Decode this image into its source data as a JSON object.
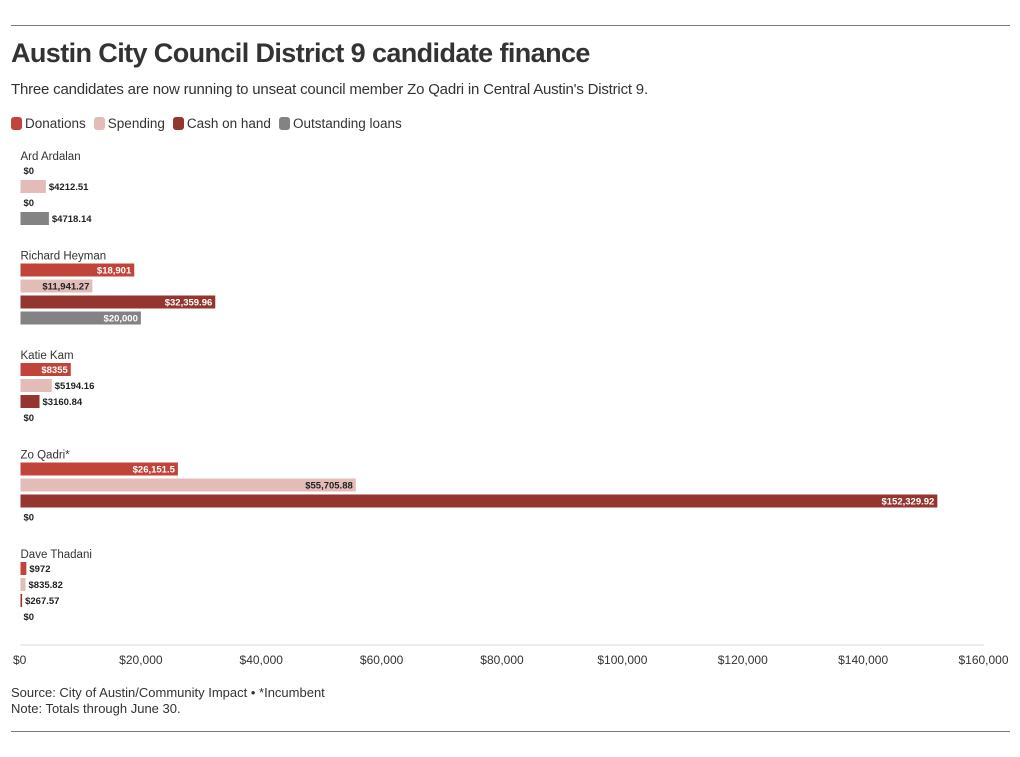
{
  "title": "Austin City Council District 9 candidate finance",
  "subtitle": "Three candidates are now running to unseat council member Zo Qadri in Central Austin's District 9.",
  "legend": [
    {
      "label": "Donations",
      "color": "#c1443b"
    },
    {
      "label": "Spending",
      "color": "#e3bcb8"
    },
    {
      "label": "Cash on hand",
      "color": "#953530"
    },
    {
      "label": "Outstanding loans",
      "color": "#838383"
    }
  ],
  "footer": {
    "source": "Source: City of Austin/Community Impact • *Incumbent",
    "note": "Note: Totals through June 30."
  },
  "chart_data": {
    "type": "bar",
    "orientation": "horizontal",
    "categories": [
      "Ard Ardalan",
      "Richard Heyman",
      "Katie Kam",
      "Zo Qadri*",
      "Dave Thadani"
    ],
    "series": [
      {
        "name": "Donations",
        "color": "#c1443b",
        "values": [
          0,
          18901,
          8355,
          26151.5,
          972
        ],
        "labels": [
          "$0",
          "$18,901",
          "$8355",
          "$26,151.5",
          "$972"
        ]
      },
      {
        "name": "Spending",
        "color": "#e3bcb8",
        "values": [
          4212.51,
          11941.27,
          5194.16,
          55705.88,
          835.82
        ],
        "labels": [
          "$4212.51",
          "$11,941.27",
          "$5194.16",
          "$55,705.88",
          "$835.82"
        ]
      },
      {
        "name": "Cash on hand",
        "color": "#953530",
        "values": [
          0,
          32359.96,
          3160.84,
          152329.92,
          267.57
        ],
        "labels": [
          "$0",
          "$32,359.96",
          "$3160.84",
          "$152,329.92",
          "$267.57"
        ]
      },
      {
        "name": "Outstanding loans",
        "color": "#838383",
        "values": [
          4718.14,
          20000,
          0,
          0,
          0
        ],
        "labels": [
          "$4718.14",
          "$20,000",
          "$0",
          "$0",
          "$0"
        ]
      }
    ],
    "xlim": [
      0,
      160000
    ],
    "xticks": [
      0,
      20000,
      40000,
      60000,
      80000,
      100000,
      120000,
      140000,
      160000
    ],
    "xtick_labels": [
      "$0",
      "$20,000",
      "$40,000",
      "$60,000",
      "$80,000",
      "$100,000",
      "$120,000",
      "$140,000",
      "$160,000"
    ],
    "grid": false
  }
}
